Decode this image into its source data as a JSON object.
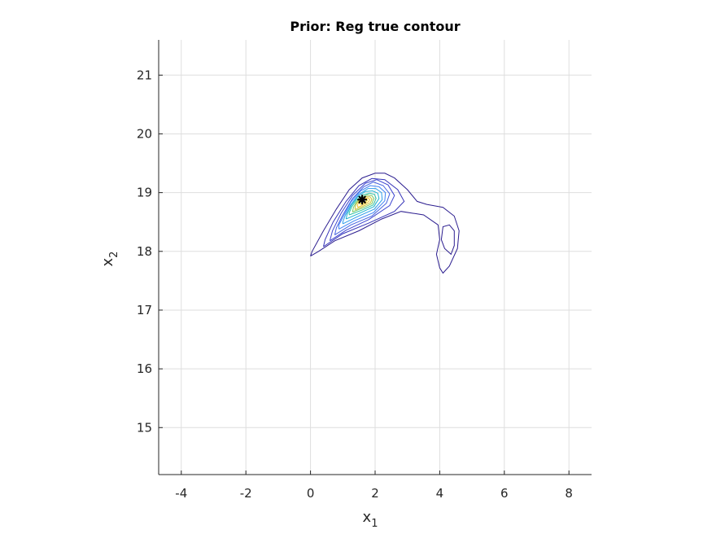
{
  "chart_data": {
    "type": "contour",
    "title": "Prior: Reg true contour",
    "xlabel": {
      "base": "x",
      "sub": "1"
    },
    "ylabel": {
      "base": "x",
      "sub": "2"
    },
    "xlim": [
      -4.7,
      8.7
    ],
    "ylim": [
      14.2,
      21.6
    ],
    "xticks": [
      -4,
      -2,
      0,
      2,
      4,
      6,
      8
    ],
    "xtick_labels": [
      "-4",
      "-2",
      "0",
      "2",
      "4",
      "6",
      "8"
    ],
    "yticks": [
      15,
      16,
      17,
      18,
      19,
      20,
      21
    ],
    "ytick_labels": [
      "15",
      "16",
      "17",
      "18",
      "19",
      "20",
      "21"
    ],
    "grid": true,
    "marker": {
      "x": 1.6,
      "y": 18.88,
      "color": "#000000"
    },
    "contours": [
      {
        "color": "#2b1d8f",
        "points": [
          [
            0.0,
            17.92
          ],
          [
            0.25,
            18.0
          ],
          [
            0.75,
            18.18
          ],
          [
            1.5,
            18.35
          ],
          [
            2.2,
            18.55
          ],
          [
            2.8,
            18.68
          ],
          [
            3.5,
            18.62
          ],
          [
            3.95,
            18.45
          ],
          [
            4.0,
            18.2
          ],
          [
            3.9,
            17.95
          ],
          [
            4.0,
            17.72
          ],
          [
            4.1,
            17.63
          ],
          [
            4.3,
            17.75
          ],
          [
            4.55,
            18.05
          ],
          [
            4.6,
            18.35
          ],
          [
            4.45,
            18.6
          ],
          [
            4.1,
            18.75
          ],
          [
            3.6,
            18.8
          ],
          [
            3.3,
            18.85
          ],
          [
            3.0,
            19.05
          ],
          [
            2.6,
            19.25
          ],
          [
            2.3,
            19.33
          ],
          [
            2.0,
            19.33
          ],
          [
            1.6,
            19.25
          ],
          [
            1.2,
            19.05
          ],
          [
            0.8,
            18.72
          ],
          [
            0.4,
            18.35
          ],
          [
            0.05,
            18.0
          ],
          [
            0.0,
            17.92
          ]
        ]
      },
      {
        "color": "#2b1d8f",
        "points": [
          [
            4.05,
            18.2
          ],
          [
            4.15,
            18.05
          ],
          [
            4.35,
            17.95
          ],
          [
            4.45,
            18.1
          ],
          [
            4.45,
            18.35
          ],
          [
            4.3,
            18.45
          ],
          [
            4.1,
            18.42
          ],
          [
            4.05,
            18.2
          ]
        ]
      },
      {
        "color": "#3634b8",
        "points": [
          [
            0.4,
            18.08
          ],
          [
            1.0,
            18.3
          ],
          [
            1.8,
            18.48
          ],
          [
            2.6,
            18.68
          ],
          [
            2.9,
            18.85
          ],
          [
            2.7,
            19.05
          ],
          [
            2.3,
            19.22
          ],
          [
            1.9,
            19.24
          ],
          [
            1.5,
            19.12
          ],
          [
            1.1,
            18.85
          ],
          [
            0.7,
            18.5
          ],
          [
            0.45,
            18.2
          ],
          [
            0.4,
            18.08
          ]
        ]
      },
      {
        "color": "#3f47d0",
        "points": [
          [
            0.6,
            18.18
          ],
          [
            1.1,
            18.36
          ],
          [
            1.8,
            18.54
          ],
          [
            2.45,
            18.78
          ],
          [
            2.6,
            18.95
          ],
          [
            2.4,
            19.13
          ],
          [
            2.05,
            19.22
          ],
          [
            1.7,
            19.16
          ],
          [
            1.3,
            18.95
          ],
          [
            0.95,
            18.65
          ],
          [
            0.68,
            18.35
          ],
          [
            0.6,
            18.18
          ]
        ]
      },
      {
        "color": "#4563e0",
        "points": [
          [
            0.75,
            18.28
          ],
          [
            1.25,
            18.45
          ],
          [
            1.9,
            18.6
          ],
          [
            2.35,
            18.82
          ],
          [
            2.45,
            18.98
          ],
          [
            2.25,
            19.12
          ],
          [
            1.95,
            19.18
          ],
          [
            1.65,
            19.1
          ],
          [
            1.3,
            18.9
          ],
          [
            1.0,
            18.62
          ],
          [
            0.8,
            18.4
          ],
          [
            0.75,
            18.28
          ]
        ]
      },
      {
        "color": "#3e83f5",
        "points": [
          [
            0.88,
            18.38
          ],
          [
            1.35,
            18.52
          ],
          [
            1.95,
            18.66
          ],
          [
            2.3,
            18.86
          ],
          [
            2.32,
            19.0
          ],
          [
            2.12,
            19.1
          ],
          [
            1.85,
            19.12
          ],
          [
            1.55,
            19.03
          ],
          [
            1.25,
            18.84
          ],
          [
            1.02,
            18.6
          ],
          [
            0.88,
            18.45
          ],
          [
            0.88,
            18.38
          ]
        ]
      },
      {
        "color": "#2d9dea",
        "points": [
          [
            1.0,
            18.47
          ],
          [
            1.45,
            18.59
          ],
          [
            1.98,
            18.72
          ],
          [
            2.22,
            18.88
          ],
          [
            2.2,
            19.0
          ],
          [
            2.02,
            19.07
          ],
          [
            1.78,
            19.07
          ],
          [
            1.5,
            18.97
          ],
          [
            1.25,
            18.8
          ],
          [
            1.08,
            18.62
          ],
          [
            1.0,
            18.5
          ],
          [
            1.0,
            18.47
          ]
        ]
      },
      {
        "color": "#1bb2cf",
        "points": [
          [
            1.1,
            18.55
          ],
          [
            1.52,
            18.65
          ],
          [
            1.96,
            18.76
          ],
          [
            2.12,
            18.9
          ],
          [
            2.08,
            18.99
          ],
          [
            1.92,
            19.03
          ],
          [
            1.7,
            19.02
          ],
          [
            1.46,
            18.93
          ],
          [
            1.26,
            18.78
          ],
          [
            1.13,
            18.63
          ],
          [
            1.1,
            18.55
          ]
        ]
      },
      {
        "color": "#2ec2a3",
        "points": [
          [
            1.2,
            18.62
          ],
          [
            1.58,
            18.7
          ],
          [
            1.94,
            18.79
          ],
          [
            2.03,
            18.9
          ],
          [
            1.98,
            18.97
          ],
          [
            1.83,
            18.99
          ],
          [
            1.63,
            18.96
          ],
          [
            1.43,
            18.88
          ],
          [
            1.28,
            18.76
          ],
          [
            1.2,
            18.66
          ],
          [
            1.2,
            18.62
          ]
        ]
      },
      {
        "color": "#7ac864",
        "points": [
          [
            1.3,
            18.67
          ],
          [
            1.62,
            18.74
          ],
          [
            1.9,
            18.81
          ],
          [
            1.96,
            18.9
          ],
          [
            1.9,
            18.95
          ],
          [
            1.76,
            18.96
          ],
          [
            1.58,
            18.92
          ],
          [
            1.42,
            18.84
          ],
          [
            1.33,
            18.75
          ],
          [
            1.3,
            18.67
          ]
        ]
      },
      {
        "color": "#c8c135",
        "points": [
          [
            1.38,
            18.71
          ],
          [
            1.64,
            18.77
          ],
          [
            1.86,
            18.83
          ],
          [
            1.9,
            18.89
          ],
          [
            1.84,
            18.93
          ],
          [
            1.7,
            18.93
          ],
          [
            1.55,
            18.89
          ],
          [
            1.43,
            18.82
          ],
          [
            1.38,
            18.75
          ],
          [
            1.38,
            18.71
          ]
        ]
      },
      {
        "color": "#f6c72c",
        "points": [
          [
            1.46,
            18.75
          ],
          [
            1.66,
            18.8
          ],
          [
            1.81,
            18.85
          ],
          [
            1.83,
            18.89
          ],
          [
            1.77,
            18.91
          ],
          [
            1.64,
            18.9
          ],
          [
            1.52,
            18.86
          ],
          [
            1.46,
            18.8
          ],
          [
            1.46,
            18.75
          ]
        ]
      },
      {
        "color": "#f9e31c",
        "points": [
          [
            1.53,
            18.8
          ],
          [
            1.68,
            18.83
          ],
          [
            1.76,
            18.87
          ],
          [
            1.74,
            18.89
          ],
          [
            1.64,
            18.88
          ],
          [
            1.55,
            18.85
          ],
          [
            1.53,
            18.8
          ]
        ]
      }
    ]
  }
}
